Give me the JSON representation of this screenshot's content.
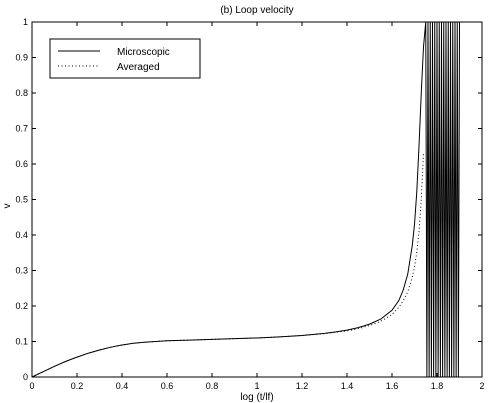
{
  "chart_data": {
    "type": "line",
    "title": "(b) Loop velocity",
    "xlabel": "log (t/lf)",
    "ylabel": "v",
    "xlim": [
      0,
      2
    ],
    "ylim": [
      0,
      1
    ],
    "xticks": [
      0,
      0.2,
      0.4,
      0.6,
      0.8,
      1,
      1.2,
      1.4,
      1.6,
      1.8,
      2
    ],
    "xtick_labels": [
      "0",
      "0.2",
      "0.4",
      "0.6",
      "0.8",
      "1",
      "1.2",
      "1.4",
      "1.6",
      "1.8",
      "2"
    ],
    "yticks": [
      0,
      0.1,
      0.2,
      0.3,
      0.4,
      0.5,
      0.6,
      0.7,
      0.8,
      0.9,
      1
    ],
    "ytick_labels": [
      "0",
      "0.1",
      "0.2",
      "0.3",
      "0.4",
      "0.5",
      "0.6",
      "0.7",
      "0.8",
      "0.9",
      "1"
    ],
    "grid": false,
    "legend_position": "top-left",
    "series": [
      {
        "name": "Microscopic",
        "style": "solid",
        "color": "#000000",
        "x": [
          0,
          0.05,
          0.1,
          0.15,
          0.2,
          0.25,
          0.3,
          0.35,
          0.4,
          0.45,
          0.5,
          0.55,
          0.6,
          0.7,
          0.8,
          0.9,
          1.0,
          1.1,
          1.2,
          1.3,
          1.35,
          1.4,
          1.45,
          1.5,
          1.55,
          1.6,
          1.63,
          1.65,
          1.67,
          1.69,
          1.7,
          1.71,
          1.72,
          1.73,
          1.74,
          1.75,
          1.755,
          1.76,
          1.765,
          1.77,
          1.775,
          1.78,
          1.785,
          1.79,
          1.795,
          1.8,
          1.805,
          1.81,
          1.815,
          1.82,
          1.825,
          1.83,
          1.835,
          1.84,
          1.845,
          1.85,
          1.855,
          1.86,
          1.865,
          1.87,
          1.875,
          1.88,
          1.885,
          1.89,
          1.895,
          1.9
        ],
        "y": [
          0,
          0.015,
          0.03,
          0.044,
          0.056,
          0.067,
          0.076,
          0.084,
          0.09,
          0.095,
          0.098,
          0.1,
          0.102,
          0.104,
          0.106,
          0.108,
          0.11,
          0.113,
          0.117,
          0.123,
          0.127,
          0.132,
          0.139,
          0.149,
          0.163,
          0.188,
          0.215,
          0.245,
          0.29,
          0.37,
          0.43,
          0.52,
          0.65,
          0.8,
          0.93,
          1.0,
          0.0,
          1.0,
          0.0,
          1.0,
          0.0,
          1.0,
          0.0,
          1.0,
          0.0,
          1.0,
          0.0,
          1.0,
          0.0,
          1.0,
          0.0,
          1.0,
          0.0,
          1.0,
          0.0,
          1.0,
          0.0,
          1.0,
          0.0,
          1.0,
          0.0,
          1.0,
          0.0,
          1.0,
          0.0,
          1.0
        ]
      },
      {
        "name": "Averaged",
        "style": "dotted",
        "color": "#000000",
        "x": [
          0,
          0.05,
          0.1,
          0.15,
          0.2,
          0.25,
          0.3,
          0.35,
          0.4,
          0.45,
          0.5,
          0.55,
          0.6,
          0.7,
          0.8,
          0.9,
          1.0,
          1.1,
          1.2,
          1.3,
          1.35,
          1.4,
          1.45,
          1.5,
          1.55,
          1.6,
          1.63,
          1.65,
          1.67,
          1.69,
          1.7,
          1.71,
          1.72,
          1.73,
          1.74
        ],
        "y": [
          0,
          0.015,
          0.03,
          0.044,
          0.056,
          0.067,
          0.076,
          0.084,
          0.09,
          0.095,
          0.098,
          0.1,
          0.102,
          0.104,
          0.106,
          0.108,
          0.11,
          0.113,
          0.117,
          0.122,
          0.126,
          0.13,
          0.136,
          0.145,
          0.157,
          0.176,
          0.196,
          0.215,
          0.24,
          0.28,
          0.31,
          0.35,
          0.41,
          0.5,
          0.63
        ]
      }
    ]
  }
}
